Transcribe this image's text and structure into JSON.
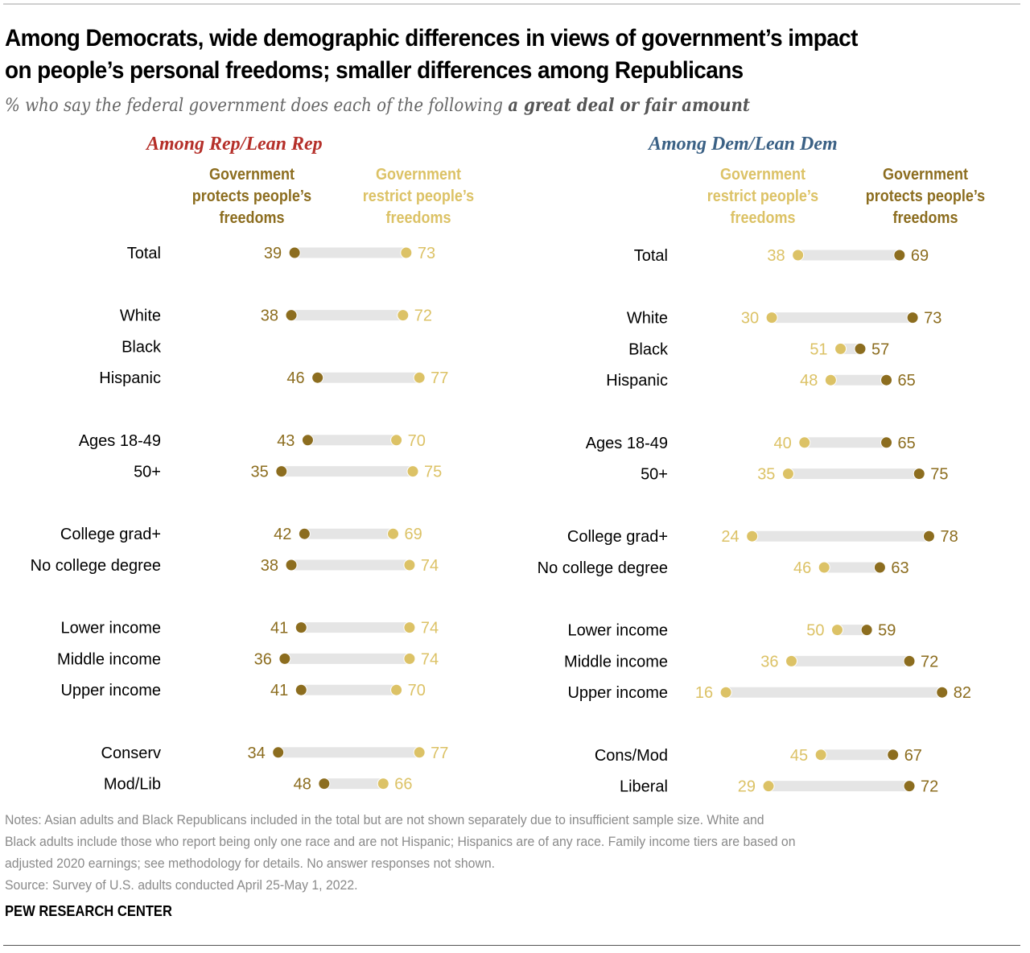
{
  "header": {
    "title_line1": "Among Democrats, wide demographic differences in views of government’s impact",
    "title_line2": "on people’s personal freedoms; smaller differences among Republicans",
    "subtitle_plain": "% who say the federal government does each of the following ",
    "subtitle_bold": "a great deal or fair amount"
  },
  "colors": {
    "protects": "#8c6d1f",
    "restricts": "#dcc266",
    "bar": "#e5e5e5",
    "rep_heading": "#b5302a",
    "dem_heading": "#3b6185",
    "label": "#000000"
  },
  "chart_data": [
    {
      "type": "dot-plot",
      "title": "Among Rep/Lean Rep",
      "legend": [
        {
          "name": "Government protects people’s freedoms",
          "lines": [
            "Government",
            "protects people’s",
            "freedoms"
          ],
          "position": "left"
        },
        {
          "name": "Government restrict people’s freedoms",
          "lines": [
            "Government",
            "restrict people’s",
            "freedoms"
          ],
          "position": "right"
        }
      ],
      "xlim": [
        0,
        100
      ],
      "categories": [
        "Total",
        "White",
        "Black",
        "Hispanic",
        "Ages 18-49",
        "50+",
        "College grad+",
        "No college degree",
        "Lower income",
        "Middle income",
        "Upper income",
        "Conserv",
        "Mod/Lib"
      ],
      "groups": [
        0,
        1,
        1,
        1,
        2,
        2,
        3,
        3,
        4,
        4,
        4,
        5,
        5
      ],
      "series": [
        {
          "name": "Government protects people’s freedoms",
          "key": "protects",
          "values": [
            39,
            38,
            null,
            46,
            43,
            35,
            42,
            38,
            41,
            36,
            41,
            34,
            48
          ]
        },
        {
          "name": "Government restrict people’s freedoms",
          "key": "restricts",
          "values": [
            73,
            72,
            null,
            77,
            70,
            75,
            69,
            74,
            74,
            74,
            70,
            77,
            66
          ]
        }
      ]
    },
    {
      "type": "dot-plot",
      "title": "Among Dem/Lean Dem",
      "legend": [
        {
          "name": "Government restrict people’s freedoms",
          "lines": [
            "Government",
            "restrict people’s",
            "freedoms"
          ],
          "position": "left"
        },
        {
          "name": "Government protects people’s freedoms",
          "lines": [
            "Government",
            "protects people’s",
            "freedoms"
          ],
          "position": "right"
        }
      ],
      "xlim": [
        0,
        100
      ],
      "categories": [
        "Total",
        "White",
        "Black",
        "Hispanic",
        "Ages 18-49",
        "50+",
        "College grad+",
        "No college degree",
        "Lower income",
        "Middle income",
        "Upper income",
        "Cons/Mod",
        "Liberal"
      ],
      "groups": [
        0,
        1,
        1,
        1,
        2,
        2,
        3,
        3,
        4,
        4,
        4,
        5,
        5
      ],
      "series": [
        {
          "name": "Government restrict people’s freedoms",
          "key": "restricts",
          "values": [
            38,
            30,
            51,
            48,
            40,
            35,
            24,
            46,
            50,
            36,
            16,
            45,
            29
          ]
        },
        {
          "name": "Government protects people’s freedoms",
          "key": "protects",
          "values": [
            69,
            73,
            57,
            65,
            65,
            75,
            78,
            63,
            59,
            72,
            82,
            67,
            72
          ]
        }
      ]
    }
  ],
  "footer": {
    "notes": [
      "Notes: Asian adults and Black Republicans included in the total but are not shown separately due to insufficient sample size. White and",
      "Black adults include those who report being only one race and are not Hispanic; Hispanics are of any race. Family income tiers are based on",
      "adjusted 2020 earnings; see methodology for details. No answer responses not shown.",
      "Source: Survey of U.S. adults conducted April 25-May 1, 2022."
    ],
    "brand": "PEW RESEARCH CENTER"
  }
}
